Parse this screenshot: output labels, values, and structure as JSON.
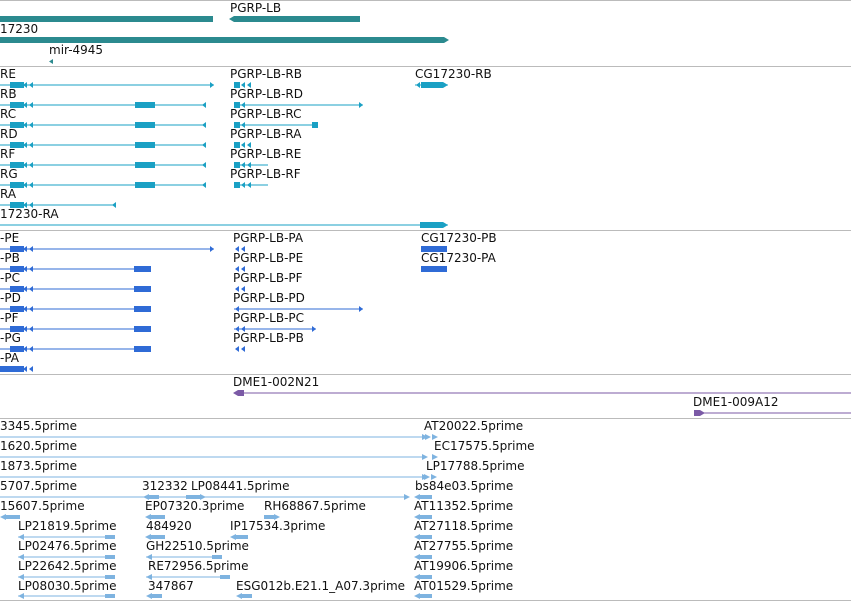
{
  "colors": {
    "gene": "#2b8a8f",
    "transcript": "#1aa0c4",
    "protein": "#2f6bd6",
    "clone": "#7b5aa6",
    "est": "#7eb3e0",
    "separator": "#bbbbbb"
  },
  "tracks": {
    "genes": [
      {
        "label": ""
      },
      {
        "label": "PGRP-LB"
      },
      {
        "label": "17230"
      },
      {
        "label": "mir-4945"
      }
    ],
    "transcripts": [
      {
        "label": "RE"
      },
      {
        "label": "PGRP-LB-RB"
      },
      {
        "label": "CG17230-RB"
      },
      {
        "label": "RB"
      },
      {
        "label": "PGRP-LB-RD"
      },
      {
        "label": "RC"
      },
      {
        "label": "PGRP-LB-RC"
      },
      {
        "label": "RD"
      },
      {
        "label": "PGRP-LB-RA"
      },
      {
        "label": "RF"
      },
      {
        "label": "PGRP-LB-RE"
      },
      {
        "label": "RG"
      },
      {
        "label": "PGRP-LB-RF"
      },
      {
        "label": "RA"
      },
      {
        "label": "17230-RA"
      }
    ],
    "proteins": [
      {
        "label": "-PE"
      },
      {
        "label": "PGRP-LB-PA"
      },
      {
        "label": "CG17230-PB"
      },
      {
        "label": "-PB"
      },
      {
        "label": "PGRP-LB-PE"
      },
      {
        "label": "CG17230-PA"
      },
      {
        "label": "-PC"
      },
      {
        "label": "PGRP-LB-PF"
      },
      {
        "label": "-PD"
      },
      {
        "label": "PGRP-LB-PD"
      },
      {
        "label": "-PF"
      },
      {
        "label": "PGRP-LB-PC"
      },
      {
        "label": "-PG"
      },
      {
        "label": "PGRP-LB-PB"
      },
      {
        "label": "-PA"
      }
    ],
    "clones": [
      {
        "label": "DME1-002N21"
      },
      {
        "label": "DME1-009A12"
      }
    ],
    "ests": [
      {
        "label": "3345.5prime"
      },
      {
        "label": "AT20022.5prime"
      },
      {
        "label": "1620.5prime"
      },
      {
        "label": "EC17575.5prime"
      },
      {
        "label": "1873.5prime"
      },
      {
        "label": "LP17788.5prime"
      },
      {
        "label": "5707.5prime"
      },
      {
        "label": "312332"
      },
      {
        "label": "LP08441.5prime"
      },
      {
        "label": "bs84e03.5prime"
      },
      {
        "label": "15607.5prime"
      },
      {
        "label": "EP07320.3prime"
      },
      {
        "label": "RH68867.5prime"
      },
      {
        "label": "AT11352.5prime"
      },
      {
        "label": "LP21819.5prime"
      },
      {
        "label": "484920"
      },
      {
        "label": "IP17534.3prime"
      },
      {
        "label": "AT27118.5prime"
      },
      {
        "label": "LP02476.5prime"
      },
      {
        "label": "GH22510.5prime"
      },
      {
        "label": "AT27755.5prime"
      },
      {
        "label": "LP22642.5prime"
      },
      {
        "label": "RE72956.5prime"
      },
      {
        "label": "AT19906.5prime"
      },
      {
        "label": "LP08030.5prime"
      },
      {
        "label": "347867"
      },
      {
        "label": "ESG012b.E21.1_A07.3prime"
      },
      {
        "label": "AT01529.5prime"
      }
    ]
  }
}
